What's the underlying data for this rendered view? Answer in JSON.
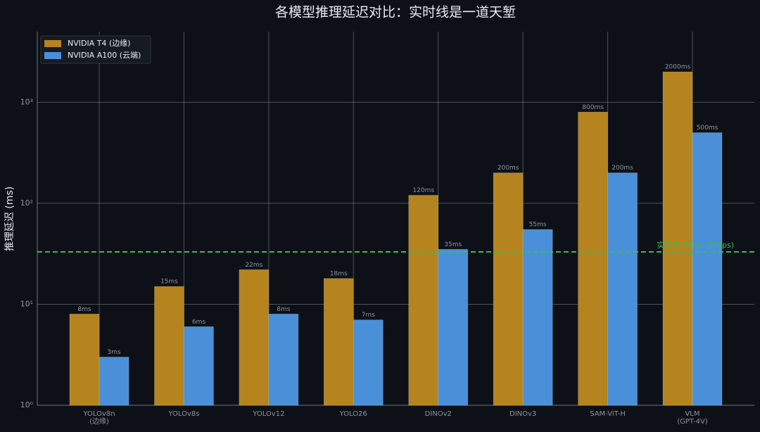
{
  "chart_data": {
    "type": "bar",
    "title": "各模型推理延迟对比：实时线是一道天堑",
    "y_label": "推理延迟 (ms)",
    "categories": [
      "YOLOv8n\n(边缘)",
      "YOLOv8s",
      "YOLOv12",
      "YOLO26",
      "DINOv2",
      "DINOv3",
      "SAM-ViT-H",
      "VLM\n(GPT-4V)"
    ],
    "series": [
      {
        "name": "NVIDIA T4 (边缘)",
        "color": "#b5841f",
        "values": [
          8,
          15,
          22,
          18,
          120,
          200,
          800,
          2000
        ],
        "value_labels": [
          "8ms",
          "15ms",
          "22ms",
          "18ms",
          "120ms",
          "200ms",
          "800ms",
          "2000ms"
        ]
      },
      {
        "name": "NVIDIA A100 (云端)",
        "color": "#4a90d9",
        "values": [
          3,
          6,
          8,
          7,
          35,
          55,
          200,
          500
        ],
        "value_labels": [
          "3ms",
          "6ms",
          "8ms",
          "7ms",
          "35ms",
          "55ms",
          "200ms",
          "500ms"
        ]
      }
    ],
    "reference_line": {
      "value": 33,
      "label": "实时线 33ms (30fps)",
      "color": "#3fb950"
    },
    "log_scale": true,
    "ylim": [
      1,
      5000
    ],
    "yticks": [
      {
        "value": 1,
        "label": "10⁰"
      },
      {
        "value": 10,
        "label": "10¹"
      },
      {
        "value": 100,
        "label": "10²"
      },
      {
        "value": 1000,
        "label": "10³"
      }
    ],
    "grid": true,
    "legend": "upper left"
  }
}
